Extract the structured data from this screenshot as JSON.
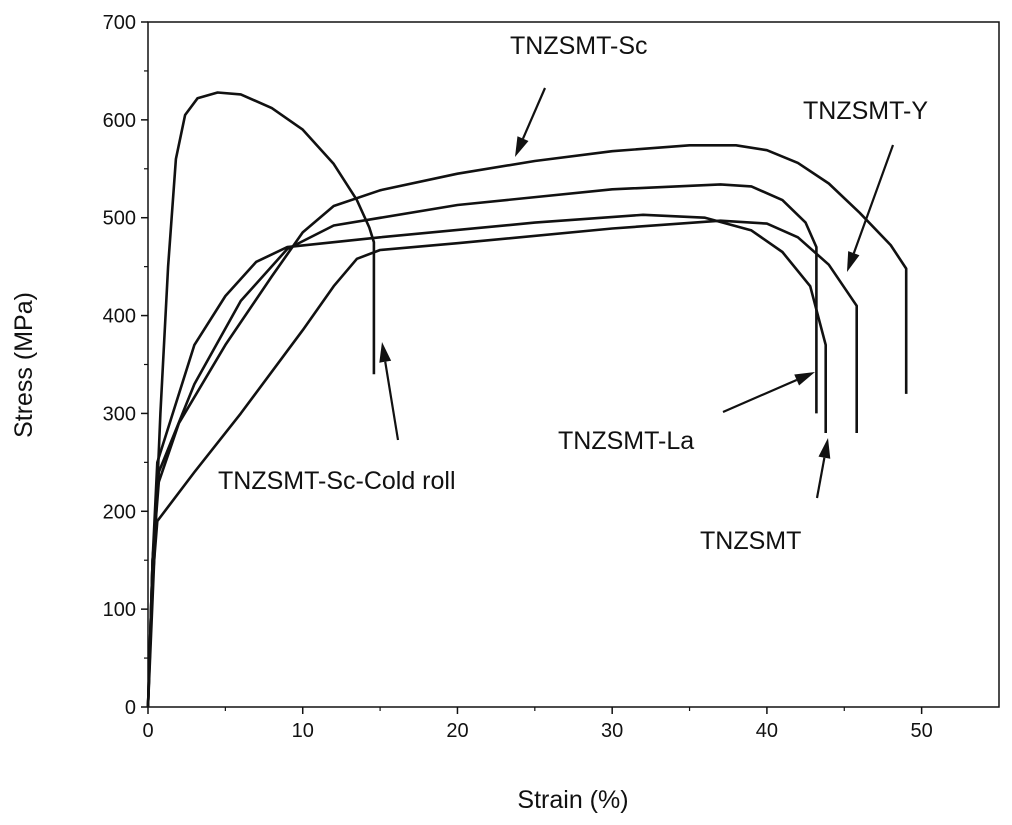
{
  "chart_data": {
    "type": "line",
    "title": "",
    "xlabel": "Strain (%)",
    "ylabel": "Stress (MPa)",
    "xlim": [
      0,
      55
    ],
    "ylim": [
      0,
      700
    ],
    "xticks": [
      0,
      10,
      20,
      30,
      40,
      50
    ],
    "yticks": [
      0,
      100,
      200,
      300,
      400,
      500,
      600,
      700
    ],
    "grid": false,
    "legend": "none (curves labelled by arrow annotations)",
    "series": [
      {
        "name": "TNZSMT-Sc-Cold roll",
        "points": [
          [
            0,
            0
          ],
          [
            0.4,
            150
          ],
          [
            0.8,
            300
          ],
          [
            1.3,
            450
          ],
          [
            1.8,
            560
          ],
          [
            2.4,
            605
          ],
          [
            3.2,
            622
          ],
          [
            4.5,
            628
          ],
          [
            6,
            626
          ],
          [
            8,
            612
          ],
          [
            10,
            590
          ],
          [
            12,
            555
          ],
          [
            13.5,
            518
          ],
          [
            14.3,
            490
          ],
          [
            14.6,
            475
          ],
          [
            14.6,
            340
          ]
        ]
      },
      {
        "name": "TNZSMT-Sc",
        "points": [
          [
            0,
            0
          ],
          [
            0.3,
            150
          ],
          [
            0.7,
            230
          ],
          [
            2,
            290
          ],
          [
            5,
            370
          ],
          [
            8,
            440
          ],
          [
            10,
            485
          ],
          [
            12,
            512
          ],
          [
            15,
            528
          ],
          [
            20,
            545
          ],
          [
            25,
            558
          ],
          [
            30,
            568
          ],
          [
            35,
            574
          ],
          [
            38,
            574
          ],
          [
            40,
            569
          ],
          [
            42,
            556
          ],
          [
            44,
            535
          ],
          [
            46,
            505
          ],
          [
            48,
            472
          ],
          [
            49,
            448
          ],
          [
            49,
            320
          ]
        ]
      },
      {
        "name": "TNZSMT-La",
        "points": [
          [
            0,
            0
          ],
          [
            0.3,
            150
          ],
          [
            0.7,
            240
          ],
          [
            3,
            330
          ],
          [
            6,
            415
          ],
          [
            9,
            468
          ],
          [
            12,
            492
          ],
          [
            20,
            513
          ],
          [
            30,
            529
          ],
          [
            37,
            534
          ],
          [
            39,
            532
          ],
          [
            41,
            518
          ],
          [
            42.5,
            495
          ],
          [
            43.2,
            470
          ],
          [
            43.2,
            300
          ]
        ]
      },
      {
        "name": "TNZSMT",
        "points": [
          [
            0,
            0
          ],
          [
            0.3,
            150
          ],
          [
            0.6,
            250
          ],
          [
            3,
            370
          ],
          [
            5,
            420
          ],
          [
            7,
            455
          ],
          [
            9,
            470
          ],
          [
            15,
            480
          ],
          [
            25,
            495
          ],
          [
            32,
            503
          ],
          [
            36,
            500
          ],
          [
            39,
            487
          ],
          [
            41,
            465
          ],
          [
            42.8,
            430
          ],
          [
            43.8,
            370
          ],
          [
            43.8,
            280
          ]
        ]
      },
      {
        "name": "TNZSMT-Y",
        "points": [
          [
            0,
            0
          ],
          [
            0.3,
            130
          ],
          [
            0.6,
            190
          ],
          [
            3,
            240
          ],
          [
            6,
            300
          ],
          [
            10,
            385
          ],
          [
            12,
            430
          ],
          [
            13.5,
            458
          ],
          [
            15,
            467
          ],
          [
            20,
            474
          ],
          [
            30,
            489
          ],
          [
            37,
            497
          ],
          [
            40,
            494
          ],
          [
            42,
            480
          ],
          [
            44,
            452
          ],
          [
            45.8,
            410
          ],
          [
            45.8,
            280
          ]
        ]
      }
    ],
    "annotations": [
      {
        "text": "TNZSMT-Sc"
      },
      {
        "text": "TNZSMT-Y"
      },
      {
        "text": "TNZSMT-La"
      },
      {
        "text": "TNZSMT"
      },
      {
        "text": "TNZSMT-Sc-Cold roll"
      }
    ]
  }
}
